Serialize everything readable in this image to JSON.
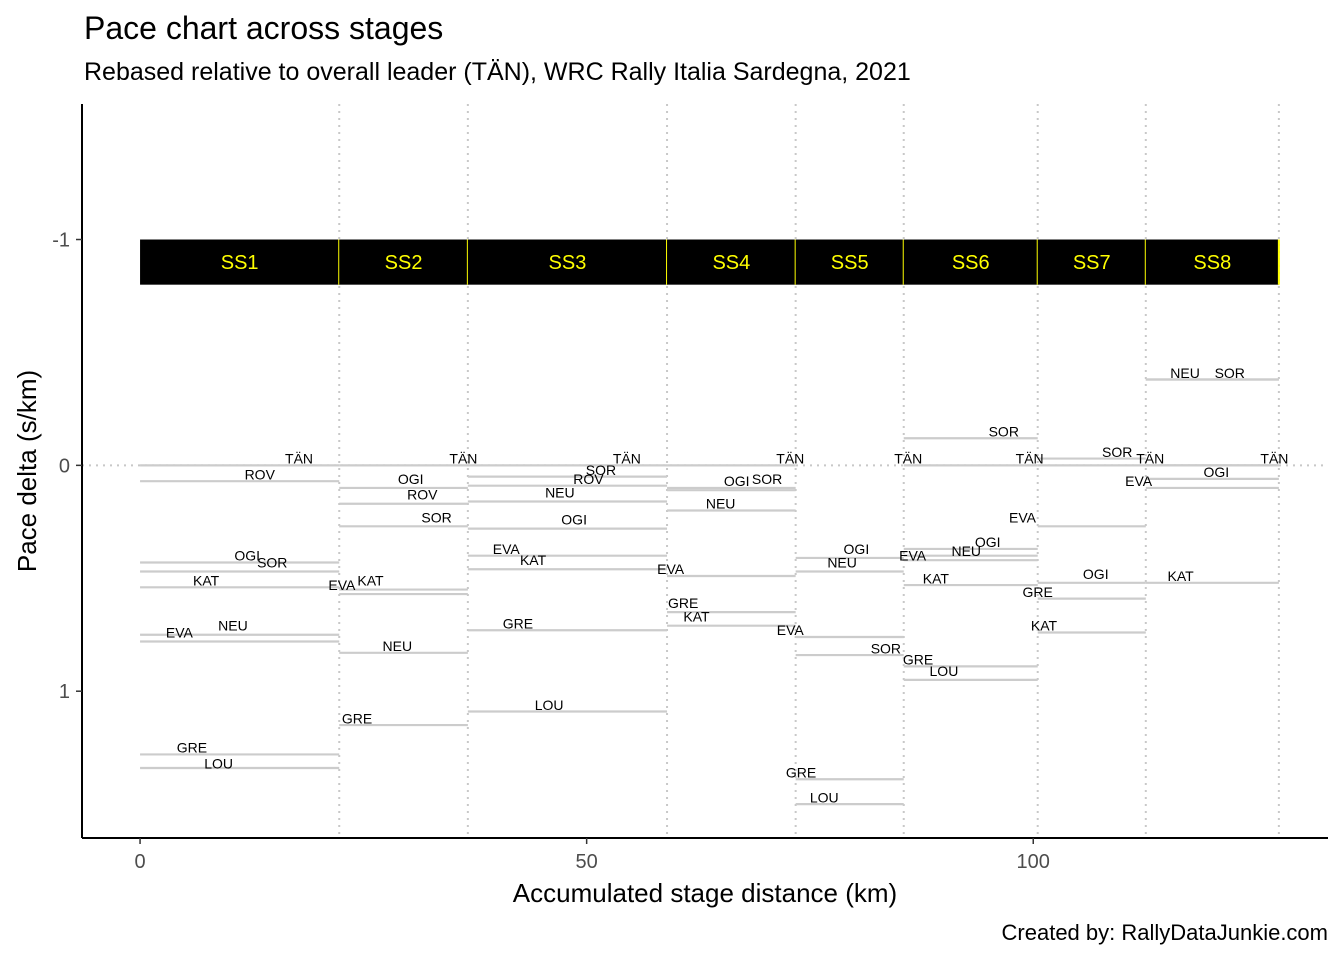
{
  "chart_data": {
    "type": "line",
    "title": "Pace chart across stages",
    "subtitle": "Rebased relative to overall leader (TÄN), WRC Rally Italia Sardegna, 2021",
    "caption": "Created by: RallyDataJunkie.com",
    "xlabel": "Accumulated stage distance (km)",
    "ylabel": "Pace delta (s/km)",
    "xlim": [
      -6.5,
      133
    ],
    "ylim": [
      1.65,
      -1.6
    ],
    "y_reversed": true,
    "x_ticks": [
      0,
      50,
      100
    ],
    "y_ticks": [
      -1,
      0,
      1
    ],
    "y_tick_labels": [
      "-1",
      "0",
      "1"
    ],
    "grid": false,
    "stage_band": {
      "y_top": -1.0,
      "y_bottom": -0.8,
      "fill": "#000000",
      "label_color": "#ffff00",
      "divider_color": "#ffff00"
    },
    "stages": [
      {
        "name": "SS1",
        "start": 0,
        "end": 22.3
      },
      {
        "name": "SS2",
        "start": 22.3,
        "end": 36.7
      },
      {
        "name": "SS3",
        "start": 36.7,
        "end": 59.0
      },
      {
        "name": "SS4",
        "start": 59.0,
        "end": 73.4
      },
      {
        "name": "SS5",
        "start": 73.4,
        "end": 85.5
      },
      {
        "name": "SS6",
        "start": 85.5,
        "end": 100.5
      },
      {
        "name": "SS7",
        "start": 100.5,
        "end": 112.6
      },
      {
        "name": "SS8",
        "start": 112.6,
        "end": 127.5
      }
    ],
    "segment_color": "#cccccc",
    "series": [
      {
        "stage": "SS1",
        "driver": "TÄN",
        "pace": 0.0,
        "label_x": 17.8,
        "label_y": -0.03
      },
      {
        "stage": "SS1",
        "driver": "ROV",
        "pace": 0.07,
        "label_x": 13.4,
        "label_y": 0.04
      },
      {
        "stage": "SS1",
        "driver": "OGI",
        "pace": 0.43,
        "label_x": 12.0,
        "label_y": 0.4
      },
      {
        "stage": "SS1",
        "driver": "SOR",
        "pace": 0.47,
        "label_x": 14.8,
        "label_y": 0.43
      },
      {
        "stage": "SS1",
        "driver": "KAT",
        "pace": 0.54,
        "label_x": 7.4,
        "label_y": 0.51
      },
      {
        "stage": "SS1",
        "driver": "NEU",
        "pace": 0.75,
        "label_x": 10.4,
        "label_y": 0.71
      },
      {
        "stage": "SS1",
        "driver": "EVA",
        "pace": 0.78,
        "label_x": 4.4,
        "label_y": 0.74
      },
      {
        "stage": "SS1",
        "driver": "GRE",
        "pace": 1.28,
        "label_x": 5.8,
        "label_y": 1.25
      },
      {
        "stage": "SS1",
        "driver": "LOU",
        "pace": 1.34,
        "label_x": 8.8,
        "label_y": 1.32
      },
      {
        "stage": "SS2",
        "driver": "TÄN",
        "pace": 0.0,
        "label_x": 36.2,
        "label_y": -0.03
      },
      {
        "stage": "SS2",
        "driver": "OGI",
        "pace": 0.1,
        "label_x": 30.3,
        "label_y": 0.06
      },
      {
        "stage": "SS2",
        "driver": "ROV",
        "pace": 0.17,
        "label_x": 31.6,
        "label_y": 0.13
      },
      {
        "stage": "SS2",
        "driver": "SOR",
        "pace": 0.27,
        "label_x": 33.2,
        "label_y": 0.23
      },
      {
        "stage": "SS2",
        "driver": "EVA",
        "pace": 0.55,
        "label_x": 22.6,
        "label_y": 0.53
      },
      {
        "stage": "SS2",
        "driver": "KAT",
        "pace": 0.57,
        "label_x": 25.8,
        "label_y": 0.51
      },
      {
        "stage": "SS2",
        "driver": "NEU",
        "pace": 0.83,
        "label_x": 28.8,
        "label_y": 0.8
      },
      {
        "stage": "SS2",
        "driver": "GRE",
        "pace": 1.15,
        "label_x": 24.3,
        "label_y": 1.12
      },
      {
        "stage": "SS3",
        "driver": "TÄN",
        "pace": 0.0,
        "label_x": 54.5,
        "label_y": -0.03
      },
      {
        "stage": "SS3",
        "driver": "SOR",
        "pace": 0.05,
        "label_x": 51.6,
        "label_y": 0.02
      },
      {
        "stage": "SS3",
        "driver": "ROV",
        "pace": 0.09,
        "label_x": 50.2,
        "label_y": 0.06
      },
      {
        "stage": "SS3",
        "driver": "NEU",
        "pace": 0.16,
        "label_x": 47.0,
        "label_y": 0.12
      },
      {
        "stage": "SS3",
        "driver": "OGI",
        "pace": 0.28,
        "label_x": 48.6,
        "label_y": 0.24
      },
      {
        "stage": "SS3",
        "driver": "EVA",
        "pace": 0.4,
        "label_x": 41.0,
        "label_y": 0.37
      },
      {
        "stage": "SS3",
        "driver": "KAT",
        "pace": 0.46,
        "label_x": 44.0,
        "label_y": 0.42
      },
      {
        "stage": "SS3",
        "driver": "GRE",
        "pace": 0.73,
        "label_x": 42.3,
        "label_y": 0.7
      },
      {
        "stage": "SS3",
        "driver": "LOU",
        "pace": 1.09,
        "label_x": 45.8,
        "label_y": 1.06
      },
      {
        "stage": "SS4",
        "driver": "TÄN",
        "pace": 0.0,
        "label_x": 72.8,
        "label_y": -0.03
      },
      {
        "stage": "SS4",
        "driver": "SOR",
        "pace": 0.1,
        "label_x": 70.2,
        "label_y": 0.06
      },
      {
        "stage": "SS4",
        "driver": "OGI",
        "pace": 0.11,
        "label_x": 66.8,
        "label_y": 0.07
      },
      {
        "stage": "SS4",
        "driver": "NEU",
        "pace": 0.2,
        "label_x": 65.0,
        "label_y": 0.17
      },
      {
        "stage": "SS4",
        "driver": "EVA",
        "pace": 0.49,
        "label_x": 59.4,
        "label_y": 0.46
      },
      {
        "stage": "SS4",
        "driver": "GRE",
        "pace": 0.65,
        "label_x": 60.8,
        "label_y": 0.61
      },
      {
        "stage": "SS4",
        "driver": "KAT",
        "pace": 0.71,
        "label_x": 62.3,
        "label_y": 0.67
      },
      {
        "stage": "SS5",
        "driver": "EVA",
        "pace": 0.76,
        "label_x": 72.8,
        "label_y": 0.73
      },
      {
        "stage": "SS5",
        "driver": "OGI",
        "pace": 0.41,
        "label_x": 80.2,
        "label_y": 0.37
      },
      {
        "stage": "SS5",
        "driver": "NEU",
        "pace": 0.47,
        "label_x": 78.6,
        "label_y": 0.43
      },
      {
        "stage": "SS5",
        "driver": "SOR",
        "pace": 0.84,
        "label_x": 83.5,
        "label_y": 0.81
      },
      {
        "stage": "SS5",
        "driver": "GRE",
        "pace": 1.39,
        "label_x": 74.0,
        "label_y": 1.36
      },
      {
        "stage": "SS5",
        "driver": "LOU",
        "pace": 1.5,
        "label_x": 76.6,
        "label_y": 1.47
      },
      {
        "stage": "SS6",
        "driver": "TÄN",
        "pace": 0.0,
        "label_x": 86.0,
        "label_y": -0.03
      },
      {
        "stage": "SS6",
        "driver": "SOR",
        "pace": -0.12,
        "label_x": 96.7,
        "label_y": -0.15
      },
      {
        "stage": "SS6",
        "driver": "OGI",
        "pace": 0.37,
        "label_x": 94.9,
        "label_y": 0.34
      },
      {
        "stage": "SS6",
        "driver": "NEU",
        "pace": 0.4,
        "label_x": 92.5,
        "label_y": 0.38
      },
      {
        "stage": "SS6",
        "driver": "EVA",
        "pace": 0.42,
        "label_x": 86.5,
        "label_y": 0.4
      },
      {
        "stage": "SS6",
        "driver": "KAT",
        "pace": 0.53,
        "label_x": 89.1,
        "label_y": 0.5
      },
      {
        "stage": "SS6",
        "driver": "GRE",
        "pace": 0.89,
        "label_x": 87.1,
        "label_y": 0.86
      },
      {
        "stage": "SS6",
        "driver": "LOU",
        "pace": 0.95,
        "label_x": 90.0,
        "label_y": 0.91
      },
      {
        "stage": "SS7",
        "driver": "TÄN",
        "pace": 0.0,
        "label_x": 99.6,
        "label_y": -0.03
      },
      {
        "stage": "SS7",
        "driver": "SOR",
        "pace": -0.03,
        "label_x": 109.4,
        "label_y": -0.06
      },
      {
        "stage": "SS7",
        "driver": "EVA",
        "pace": 0.27,
        "label_x": 98.8,
        "label_y": 0.23
      },
      {
        "stage": "SS7",
        "driver": "OGI",
        "pace": 0.52,
        "label_x": 107.0,
        "label_y": 0.48
      },
      {
        "stage": "SS7",
        "driver": "GRE",
        "pace": 0.59,
        "label_x": 100.5,
        "label_y": 0.56
      },
      {
        "stage": "SS7",
        "driver": "KAT",
        "pace": 0.74,
        "label_x": 101.2,
        "label_y": 0.71
      },
      {
        "stage": "SS8",
        "driver": "TÄN",
        "pace": 0.0,
        "label_x": 113.1,
        "label_y": -0.03
      },
      {
        "stage": "SS8",
        "driver": "TÄN",
        "pace": 0.0,
        "label_x": 127.0,
        "label_y": -0.03
      },
      {
        "stage": "SS8",
        "driver": "NEU",
        "pace": -0.38,
        "label_x": 117.0,
        "label_y": -0.41
      },
      {
        "stage": "SS8",
        "driver": "SOR",
        "pace": -0.38,
        "label_x": 122.0,
        "label_y": -0.41
      },
      {
        "stage": "SS8",
        "driver": "OGI",
        "pace": 0.06,
        "label_x": 120.5,
        "label_y": 0.03
      },
      {
        "stage": "SS8",
        "driver": "EVA",
        "pace": 0.1,
        "label_x": 111.8,
        "label_y": 0.07
      },
      {
        "stage": "SS8",
        "driver": "KAT",
        "pace": 0.52,
        "label_x": 116.5,
        "label_y": 0.49
      }
    ]
  }
}
